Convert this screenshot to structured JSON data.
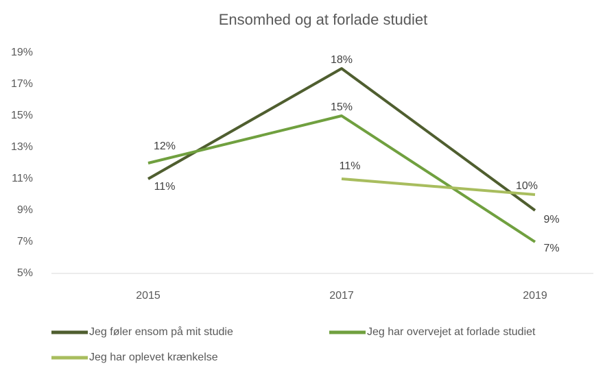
{
  "chart_data": {
    "type": "line",
    "title": "Ensomhed og at forlade studiet",
    "categories": [
      "2015",
      "2017",
      "2019"
    ],
    "series": [
      {
        "name": "Jeg føler ensom på mit studie",
        "color": "#4f5e2f",
        "values": [
          11,
          18,
          9
        ],
        "value_labels": [
          "11%",
          "18%",
          "9%"
        ]
      },
      {
        "name": "Jeg har overvejet at forlade studiet",
        "color": "#70a03f",
        "values": [
          12,
          15,
          7
        ],
        "value_labels": [
          "12%",
          "15%",
          "7%"
        ]
      },
      {
        "name": "Jeg har oplevet krænkelse",
        "color": "#a8bd5e",
        "values": [
          null,
          11,
          10
        ],
        "value_labels": [
          null,
          "11%",
          "10%"
        ]
      }
    ],
    "ylim": [
      5,
      19
    ],
    "yticks": [
      {
        "value": 5,
        "label": "5%"
      },
      {
        "value": 7,
        "label": "7%"
      },
      {
        "value": 9,
        "label": "9%"
      },
      {
        "value": 11,
        "label": "11%"
      },
      {
        "value": 13,
        "label": "13%"
      },
      {
        "value": 15,
        "label": "15%"
      },
      {
        "value": 17,
        "label": "17%"
      },
      {
        "value": 19,
        "label": "19%"
      }
    ],
    "grid": false,
    "legend": "bottom"
  }
}
